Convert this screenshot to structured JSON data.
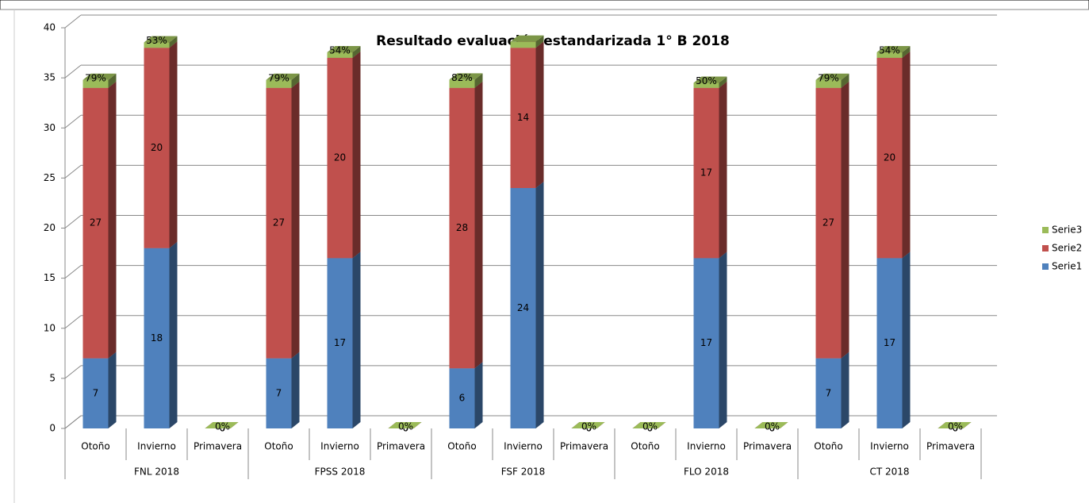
{
  "chart_data": {
    "type": "bar",
    "stacked": true,
    "title": "Resultado evaluación estandarizada 1° B 2018",
    "categories": [
      "Otoño",
      "Invierno",
      "Primavera",
      "Otoño",
      "Invierno",
      "Primavera",
      "Otoño",
      "Invierno",
      "Primavera",
      "Otoño",
      "Invierno",
      "Primavera",
      "Otoño",
      "Invierno",
      "Primavera"
    ],
    "groups": [
      "FNL 2018",
      "FPSS 2018",
      "FSF 2018",
      "FLO 2018",
      "CT 2018"
    ],
    "series": [
      {
        "name": "Serie1",
        "color": "#4f81bd",
        "values": [
          7,
          18,
          0,
          7,
          17,
          0,
          6,
          24,
          0,
          0,
          17,
          0,
          7,
          17,
          0
        ]
      },
      {
        "name": "Serie2",
        "color": "#c0504d",
        "values": [
          27,
          20,
          0,
          27,
          20,
          0,
          28,
          14,
          0,
          0,
          17,
          0,
          27,
          20,
          0
        ]
      },
      {
        "name": "Serie3",
        "color": "#9bbb59",
        "values": [
          0.79,
          0.53,
          0,
          0.79,
          0.54,
          0,
          0.82,
          0.6,
          0,
          0,
          0.5,
          0,
          0.79,
          0.54,
          0
        ],
        "value_labels": [
          "79%",
          "53%",
          "0%",
          "79%",
          "54%",
          "0%",
          "82%",
          null,
          "0%",
          "0%",
          "50%",
          "0%",
          "79%",
          "54%",
          "0%"
        ]
      }
    ],
    "ylim": [
      0,
      40
    ],
    "yticks": [
      0,
      5,
      10,
      15,
      20,
      25,
      30,
      35,
      40
    ],
    "grid": true,
    "legend": "right"
  }
}
